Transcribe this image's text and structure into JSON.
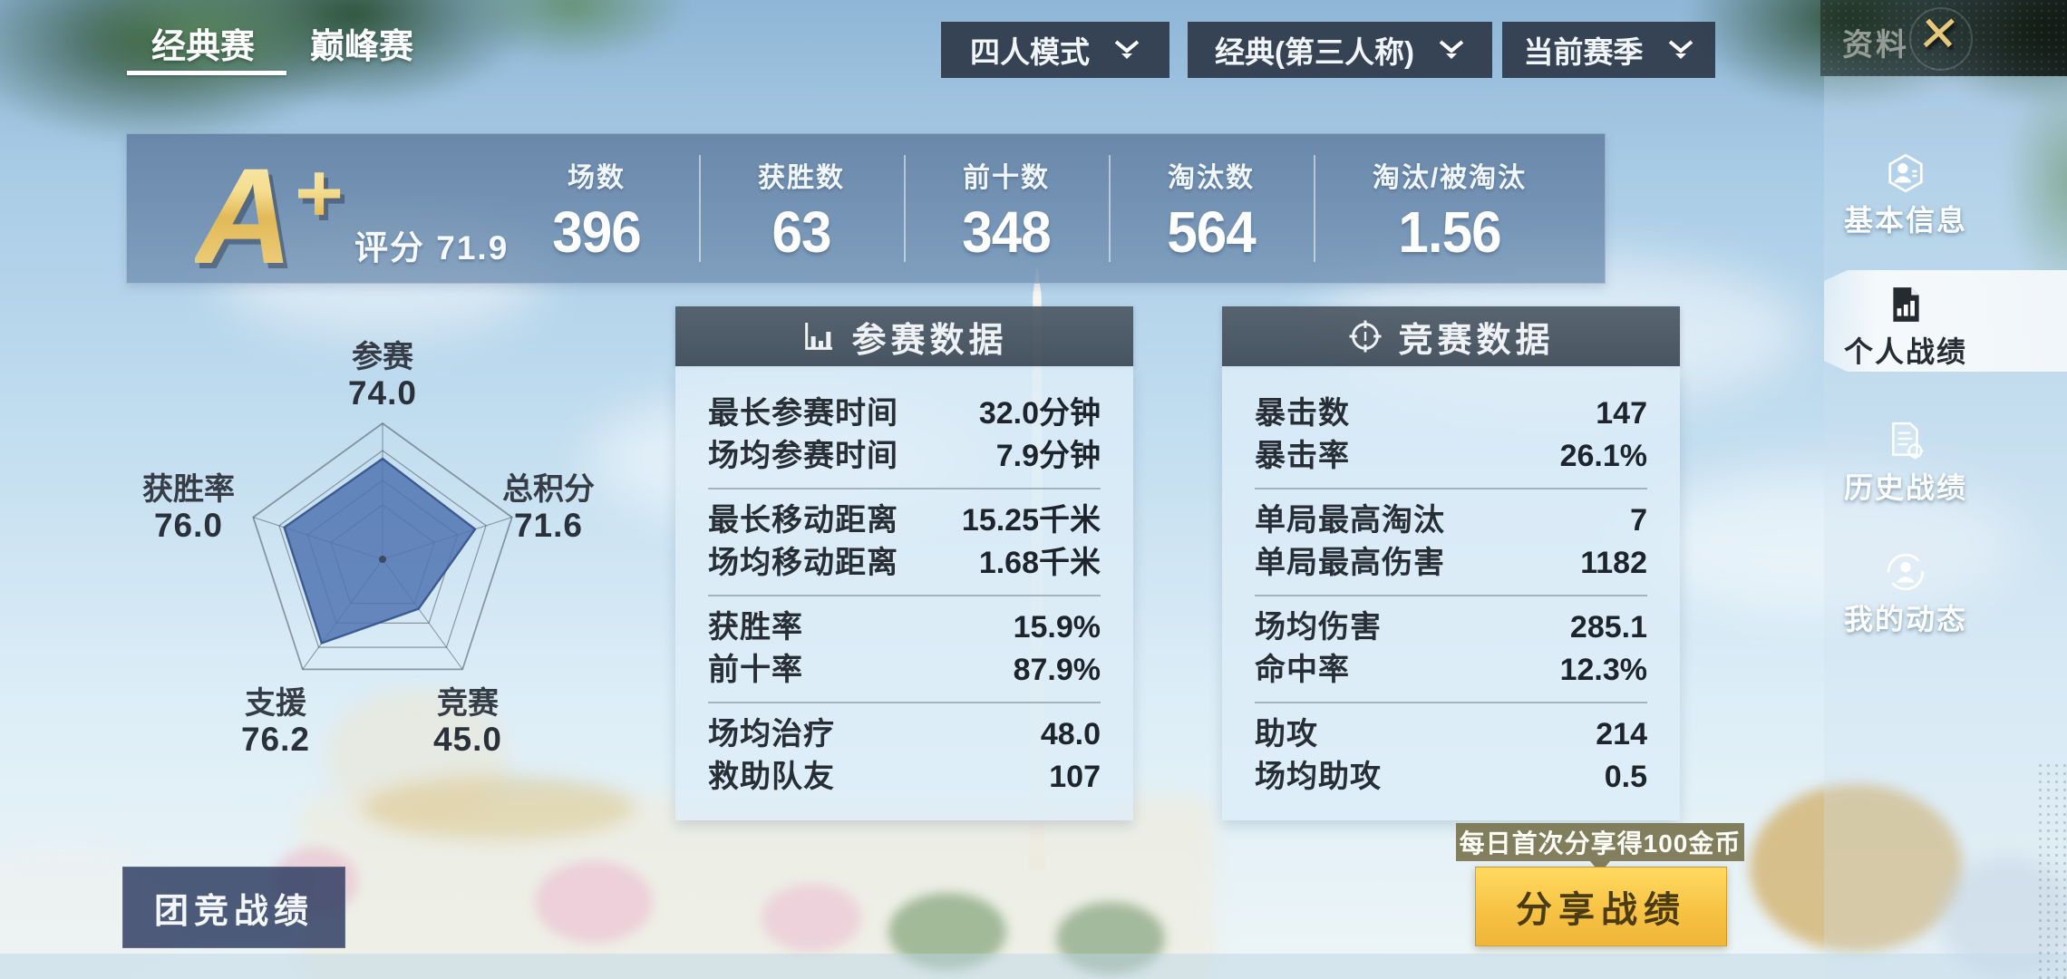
{
  "profile_header": {
    "title": "资料",
    "close_icon": "✕"
  },
  "tabs": {
    "active_index": 0,
    "items": [
      {
        "label": "经典赛"
      },
      {
        "label": "巅峰赛"
      }
    ]
  },
  "filters": {
    "mode": "四人模式",
    "match_type": "经典(第三人称)",
    "season": "当前赛季"
  },
  "sidebar": {
    "items": [
      {
        "label": "基本信息",
        "icon": "id-card-icon",
        "selected": false
      },
      {
        "label": "个人战绩",
        "icon": "stats-doc-icon",
        "selected": true
      },
      {
        "label": "历史战绩",
        "icon": "history-doc-icon",
        "selected": false
      },
      {
        "label": "我的动态",
        "icon": "activity-icon",
        "selected": false
      }
    ]
  },
  "summary": {
    "grade_letter": "A",
    "grade_suffix": "+",
    "score_label": "评分",
    "score": "71.9",
    "stats": [
      {
        "label": "场数",
        "value": "396"
      },
      {
        "label": "获胜数",
        "value": "63"
      },
      {
        "label": "前十数",
        "value": "348"
      },
      {
        "label": "淘汰数",
        "value": "564"
      },
      {
        "label": "淘汰/被淘汰",
        "value": "1.56"
      }
    ]
  },
  "chart_data": {
    "type": "radar",
    "axes": [
      {
        "label": "参赛",
        "value": "74.0"
      },
      {
        "label": "总积分",
        "value": "71.6"
      },
      {
        "label": "竞赛",
        "value": "45.0"
      },
      {
        "label": "支援",
        "value": "76.2"
      },
      {
        "label": "获胜率",
        "value": "76.0"
      }
    ],
    "max": 100,
    "grid_levels": [
      1,
      0.8,
      0.58,
      0.4
    ],
    "fill_color": "rgba(80,116,178,0.85)",
    "stroke_color": "rgba(52,84,140,0.92)",
    "grid_color": "rgba(75,84,94,0.55)"
  },
  "panels": [
    {
      "title": "参赛数据",
      "icon": "bar-chart-icon",
      "groups": [
        [
          {
            "label": "最长参赛时间",
            "value": "32.0分钟"
          },
          {
            "label": "场均参赛时间",
            "value": "7.9分钟"
          }
        ],
        [
          {
            "label": "最长移动距离",
            "value": "15.25千米"
          },
          {
            "label": "场均移动距离",
            "value": "1.68千米"
          }
        ],
        [
          {
            "label": "获胜率",
            "value": "15.9%"
          },
          {
            "label": "前十率",
            "value": "87.9%"
          }
        ],
        [
          {
            "label": "场均治疗",
            "value": "48.0"
          },
          {
            "label": "救助队友",
            "value": "107"
          }
        ]
      ]
    },
    {
      "title": "竞赛数据",
      "icon": "crosshair-icon",
      "groups": [
        [
          {
            "label": "暴击数",
            "value": "147"
          },
          {
            "label": "暴击率",
            "value": "26.1%"
          }
        ],
        [
          {
            "label": "单局最高淘汰",
            "value": "7"
          },
          {
            "label": "单局最高伤害",
            "value": "1182"
          }
        ],
        [
          {
            "label": "场均伤害",
            "value": "285.1"
          },
          {
            "label": "命中率",
            "value": "12.3%"
          }
        ],
        [
          {
            "label": "助攻",
            "value": "214"
          },
          {
            "label": "场均助攻",
            "value": "0.5"
          }
        ]
      ]
    }
  ],
  "actions": {
    "team_button": "团竞战绩",
    "share_button": "分享战绩",
    "share_tooltip": "每日首次分享得100金币"
  },
  "colors": {
    "accent_gold": "#e8c258",
    "banner_blue": "#64809f",
    "panel_header_dark": "#4b5662",
    "button_yellow": "#f6c844",
    "button_navy": "#2a385e",
    "tooltip_olive": "#7a7552"
  }
}
